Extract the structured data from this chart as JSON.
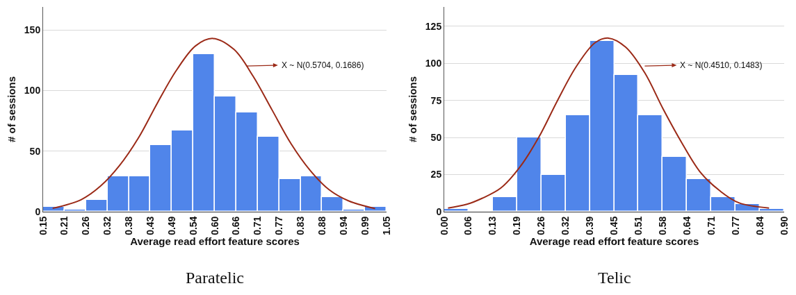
{
  "chart_data": [
    {
      "type": "histogram",
      "xlabel": "Average read effort feature scores",
      "ylabel": "# of sessions",
      "color": "#5085ea",
      "bins": [
        0.15,
        0.20625,
        0.2625,
        0.31875,
        0.375,
        0.43125,
        0.4875,
        0.54375,
        0.6,
        0.65625,
        0.7125,
        0.76875,
        0.825,
        0.88125,
        0.9375,
        0.99375,
        1.05
      ],
      "values": [
        4,
        2,
        10,
        29,
        29,
        55,
        67,
        130,
        95,
        82,
        62,
        27,
        29,
        12,
        2,
        4
      ],
      "series": [
        {
          "type": "line",
          "color": "#9b2a17",
          "x": [
            0.175,
            0.25,
            0.3,
            0.35,
            0.4,
            0.45,
            0.5,
            0.55,
            0.595,
            0.65,
            0.7,
            0.75,
            0.8,
            0.85,
            0.9,
            0.95,
            1.02
          ],
          "values": [
            2.8,
            10,
            21,
            38,
            61,
            90,
            117,
            137,
            143,
            134,
            112,
            84,
            56,
            34,
            18,
            9,
            2.6
          ]
        }
      ],
      "xlim": [
        0.15,
        1.05
      ],
      "xticks": [
        {
          "value": 0.15,
          "label": "0.15"
        },
        {
          "value": 0.20625,
          "label": "0.21"
        },
        {
          "value": 0.2625,
          "label": "0.26"
        },
        {
          "value": 0.31875,
          "label": "0.32"
        },
        {
          "value": 0.375,
          "label": "0.38"
        },
        {
          "value": 0.43125,
          "label": "0.43"
        },
        {
          "value": 0.4875,
          "label": "0.49"
        },
        {
          "value": 0.54375,
          "label": "0.54"
        },
        {
          "value": 0.6,
          "label": "0.60"
        },
        {
          "value": 0.65625,
          "label": "0.66"
        },
        {
          "value": 0.7125,
          "label": "0.71"
        },
        {
          "value": 0.76875,
          "label": "0.77"
        },
        {
          "value": 0.825,
          "label": "0.83"
        },
        {
          "value": 0.88125,
          "label": "0.88"
        },
        {
          "value": 0.9375,
          "label": "0.94"
        },
        {
          "value": 0.99375,
          "label": "0.99"
        },
        {
          "value": 1.05,
          "label": "1.05"
        }
      ],
      "ylim": [
        0,
        169
      ],
      "yticks": [
        0,
        50,
        100,
        150
      ],
      "grid": "y",
      "annotations": [
        "X ~ N(0.5704, 0.1686)",
        "Paratelic"
      ]
    },
    {
      "type": "histogram",
      "xlabel": "Average read effort feature scores",
      "ylabel": "# of sessions",
      "color": "#5085ea",
      "bins": [
        0,
        0.0642857,
        0.1285714,
        0.1928571,
        0.2571429,
        0.3214286,
        0.3857143,
        0.45,
        0.5142857,
        0.5785714,
        0.6428571,
        0.7071429,
        0.7714286,
        0.8357143,
        0.9
      ],
      "values": [
        2,
        0,
        10,
        50,
        25,
        65,
        115,
        92,
        65,
        37,
        22,
        10,
        5,
        2
      ],
      "series": [
        {
          "type": "line",
          "color": "#9b2a17",
          "x": [
            0.01,
            0.06,
            0.1,
            0.15,
            0.2,
            0.25,
            0.3,
            0.35,
            0.4,
            0.435,
            0.48,
            0.53,
            0.58,
            0.63,
            0.68,
            0.73,
            0.78,
            0.86
          ],
          "values": [
            2.5,
            5,
            9,
            16,
            30,
            50,
            75,
            98,
            114,
            117,
            111,
            94,
            69,
            46,
            26,
            14,
            6,
            2.5
          ]
        }
      ],
      "xlim": [
        0,
        0.9
      ],
      "xticks": [
        {
          "value": 0,
          "label": "0.00"
        },
        {
          "value": 0.0642857,
          "label": "0.06"
        },
        {
          "value": 0.1285714,
          "label": "0.13"
        },
        {
          "value": 0.1928571,
          "label": "0.19"
        },
        {
          "value": 0.2571429,
          "label": "0.26"
        },
        {
          "value": 0.3214286,
          "label": "0.32"
        },
        {
          "value": 0.3857143,
          "label": "0.39"
        },
        {
          "value": 0.45,
          "label": "0.45"
        },
        {
          "value": 0.5142857,
          "label": "0.51"
        },
        {
          "value": 0.5785714,
          "label": "0.58"
        },
        {
          "value": 0.6428571,
          "label": "0.64"
        },
        {
          "value": 0.7071429,
          "label": "0.71"
        },
        {
          "value": 0.7714286,
          "label": "0.77"
        },
        {
          "value": 0.8357143,
          "label": "0.84"
        },
        {
          "value": 0.9,
          "label": "0.90"
        }
      ],
      "ylim": [
        0,
        138
      ],
      "yticks": [
        0,
        25,
        50,
        75,
        100,
        125
      ],
      "grid": "y",
      "annotations": [
        "X ~ N(0.4510, 0.1483)",
        "Telic"
      ]
    }
  ]
}
